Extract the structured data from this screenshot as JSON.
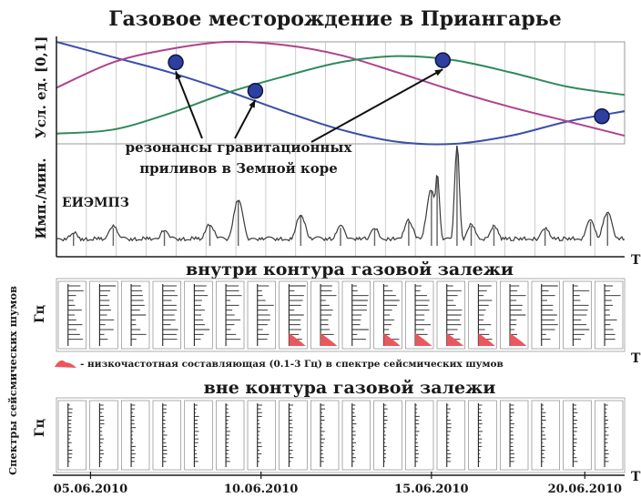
{
  "title": "Газовое месторождение в Приангарье",
  "colors": {
    "blue": "#3a4fa8",
    "magenta": "#b0428e",
    "green": "#2f8a5a",
    "marker": "#2f3fa0",
    "spike": "#3a3a3a",
    "lowfreq": "#e9585f",
    "grid": "#b8b8b8"
  },
  "chart_data": [
    {
      "type": "line",
      "name": "tidal-panel",
      "ylabel": "Усл. ед. [0,1]",
      "x_range": [
        0,
        1
      ],
      "ylim": [
        0,
        1
      ],
      "series": [
        {
          "color_key": "blue",
          "x": [
            0,
            0.1,
            0.2,
            0.3,
            0.4,
            0.5,
            0.6,
            0.7,
            0.8,
            0.9,
            1
          ],
          "y": [
            1.0,
            0.85,
            0.7,
            0.52,
            0.32,
            0.14,
            0.02,
            0.0,
            0.08,
            0.22,
            0.32
          ]
        },
        {
          "color_key": "magenta",
          "x": [
            0,
            0.1,
            0.2,
            0.3,
            0.4,
            0.5,
            0.6,
            0.7,
            0.8,
            0.9,
            1
          ],
          "y": [
            0.55,
            0.8,
            0.93,
            1.0,
            0.97,
            0.87,
            0.7,
            0.52,
            0.36,
            0.22,
            0.08
          ]
        },
        {
          "color_key": "green",
          "x": [
            0,
            0.1,
            0.2,
            0.3,
            0.4,
            0.5,
            0.6,
            0.7,
            0.8,
            0.9,
            1
          ],
          "y": [
            0.1,
            0.14,
            0.3,
            0.5,
            0.66,
            0.8,
            0.86,
            0.82,
            0.7,
            0.56,
            0.48
          ]
        }
      ],
      "markers": [
        {
          "x": 0.21,
          "y": 0.8
        },
        {
          "x": 0.35,
          "y": 0.52
        },
        {
          "x": 0.68,
          "y": 0.82
        },
        {
          "x": 0.96,
          "y": 0.27
        }
      ],
      "annotation": [
        "резонансы гравитационных",
        "приливов в Земной коре"
      ]
    },
    {
      "type": "line",
      "name": "emission-panel",
      "ylabel": "Имп./мин.",
      "series_label": "ЕИЭМПЗ",
      "x_range": [
        0,
        1
      ],
      "ylim": [
        0,
        1
      ],
      "peaks": [
        {
          "x": 0.03,
          "y": 0.12
        },
        {
          "x": 0.1,
          "y": 0.18
        },
        {
          "x": 0.19,
          "y": 0.14
        },
        {
          "x": 0.27,
          "y": 0.2
        },
        {
          "x": 0.32,
          "y": 0.45
        },
        {
          "x": 0.43,
          "y": 0.3
        },
        {
          "x": 0.5,
          "y": 0.18
        },
        {
          "x": 0.56,
          "y": 0.16
        },
        {
          "x": 0.62,
          "y": 0.24
        },
        {
          "x": 0.66,
          "y": 0.55
        },
        {
          "x": 0.67,
          "y": 0.7
        },
        {
          "x": 0.705,
          "y": 1.0
        },
        {
          "x": 0.73,
          "y": 0.2
        },
        {
          "x": 0.77,
          "y": 0.18
        },
        {
          "x": 0.86,
          "y": 0.16
        },
        {
          "x": 0.94,
          "y": 0.24
        },
        {
          "x": 0.97,
          "y": 0.32
        }
      ]
    },
    {
      "type": "spectra",
      "name": "inside-panel",
      "title": "внутри контура газовой залежи",
      "ylabel": "Гц",
      "panel_count": 18,
      "lowfreq_panels": [
        7,
        8,
        10,
        11,
        12,
        13,
        14
      ],
      "legend": "- низкочастотная составляющая (0.1-3 Гц) в спектре сейсмических шумов"
    },
    {
      "type": "spectra",
      "name": "outside-panel",
      "title": "вне контура газовой залежи",
      "ylabel": "Гц",
      "panel_count": 18
    }
  ],
  "xaxis_label": "T",
  "side_label": "Спектры сейсмических шумов",
  "dates": [
    "05.06.2010",
    "10.06.2010",
    "15.06.2010",
    "20.06.2010"
  ],
  "date_positions": [
    0.06,
    0.36,
    0.66,
    0.93
  ]
}
